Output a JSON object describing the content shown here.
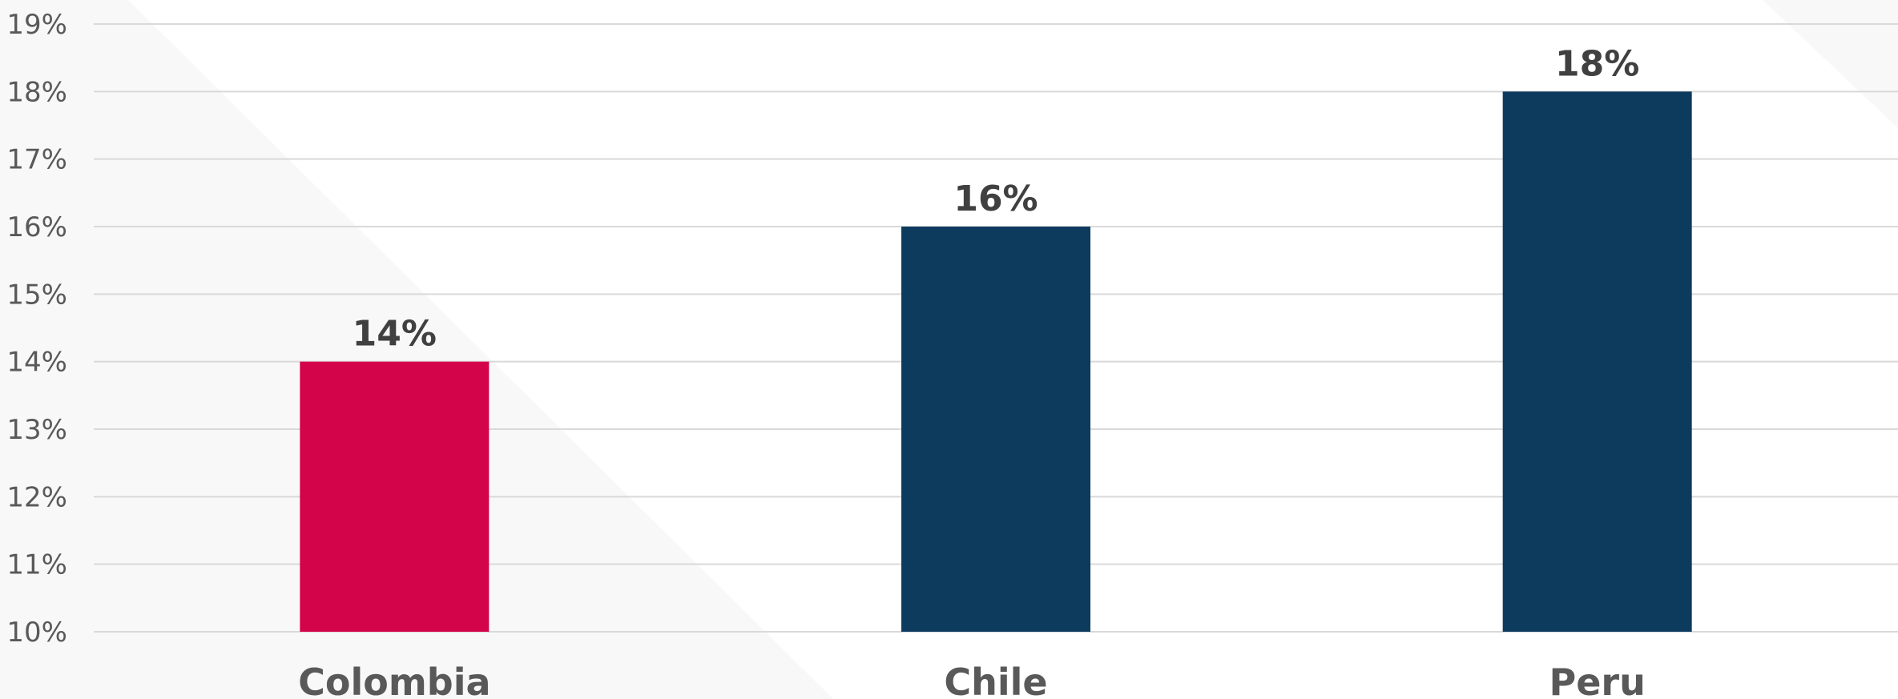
{
  "chart_data": {
    "type": "bar",
    "categories": [
      "Colombia",
      "Chile",
      "Peru"
    ],
    "values": [
      14,
      16,
      18
    ],
    "data_labels": [
      "14%",
      "16%",
      "18%"
    ],
    "bar_colors": [
      "#d4044a",
      "#0d3b5e",
      "#0d3b5e"
    ],
    "ylim": [
      10,
      19
    ],
    "yticks": [
      10,
      11,
      12,
      13,
      14,
      15,
      16,
      17,
      18,
      19
    ],
    "ytick_labels": [
      "10%",
      "11%",
      "12%",
      "13%",
      "14%",
      "15%",
      "16%",
      "17%",
      "18%",
      "19%"
    ],
    "grid": true,
    "legend": "none"
  },
  "colors": {
    "gridline": "#d9d9d9",
    "background_shape": "#f7f7f7"
  }
}
